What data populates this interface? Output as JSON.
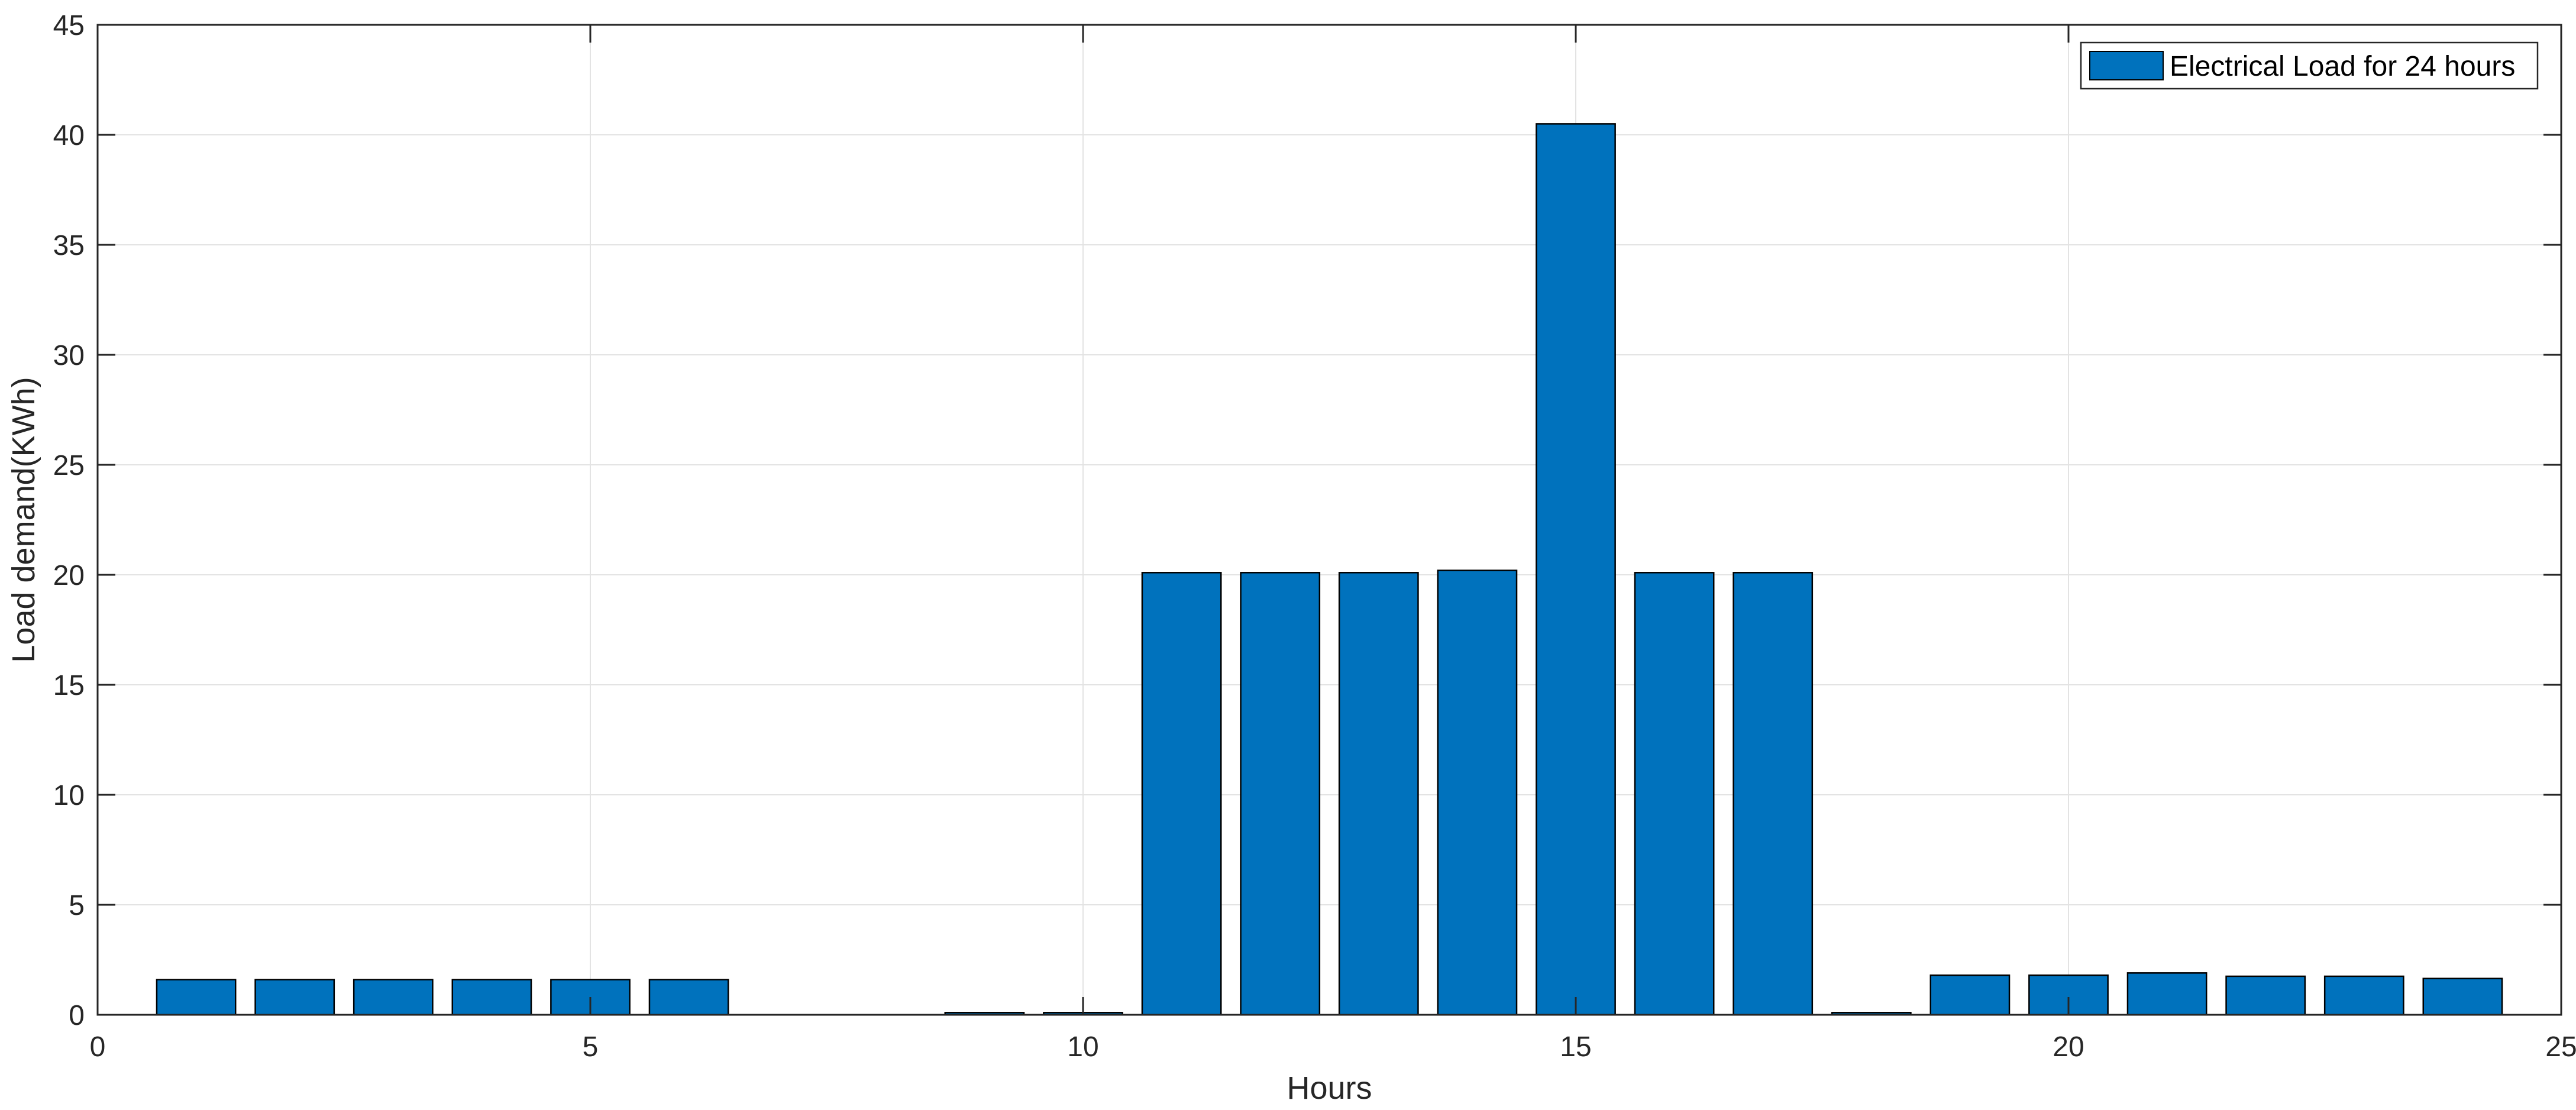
{
  "chart_data": {
    "type": "bar",
    "title": "",
    "xlabel": "Hours",
    "ylabel": "Load demand(KWh)",
    "xlim": [
      0,
      25
    ],
    "ylim": [
      0,
      45
    ],
    "x_ticks": [
      "0",
      "5",
      "10",
      "15",
      "20",
      "25"
    ],
    "y_ticks": [
      "0",
      "5",
      "10",
      "15",
      "20",
      "25",
      "30",
      "35",
      "40",
      "45"
    ],
    "grid": true,
    "legend_position": "top-right",
    "series": [
      {
        "name": "Electrical Load for 24 hours",
        "color": "#0072BD",
        "x": [
          1,
          2,
          3,
          4,
          5,
          6,
          7,
          8,
          9,
          10,
          11,
          12,
          13,
          14,
          15,
          16,
          17,
          18,
          19,
          20,
          21,
          22,
          23,
          24
        ],
        "values": [
          1.6,
          1.6,
          1.6,
          1.6,
          1.6,
          1.6,
          0,
          0,
          0.1,
          0.1,
          20.1,
          20.1,
          20.1,
          20.2,
          40.5,
          20.1,
          20.1,
          0.1,
          1.8,
          1.8,
          1.9,
          1.75,
          1.75,
          1.65
        ]
      }
    ]
  }
}
